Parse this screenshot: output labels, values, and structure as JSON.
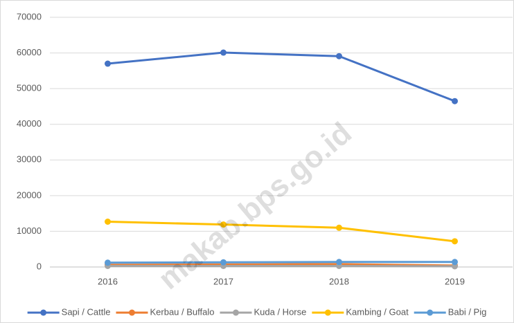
{
  "chart_data": {
    "type": "line",
    "categories": [
      "2016",
      "2017",
      "2018",
      "2019"
    ],
    "series": [
      {
        "name": "Sapi / Cattle",
        "color": "#4472c4",
        "values": [
          57000,
          60100,
          59100,
          46500
        ]
      },
      {
        "name": "Kerbau / Buffalo",
        "color": "#ed7d31",
        "values": [
          600,
          700,
          800,
          400
        ]
      },
      {
        "name": "Kuda / Horse",
        "color": "#a5a5a5",
        "values": [
          300,
          300,
          300,
          200
        ]
      },
      {
        "name": "Kambing / Goat",
        "color": "#ffc000",
        "values": [
          12700,
          11900,
          11000,
          7200
        ]
      },
      {
        "name": "Babi / Pig",
        "color": "#5b9bd5",
        "values": [
          1200,
          1300,
          1400,
          1400
        ]
      }
    ],
    "ylim": [
      0,
      70000
    ],
    "yticks": [
      0,
      10000,
      20000,
      30000,
      40000,
      50000,
      60000,
      70000
    ],
    "grid": true,
    "legend": "bottom",
    "annotations": [
      "makab.bps.go.id"
    ]
  }
}
